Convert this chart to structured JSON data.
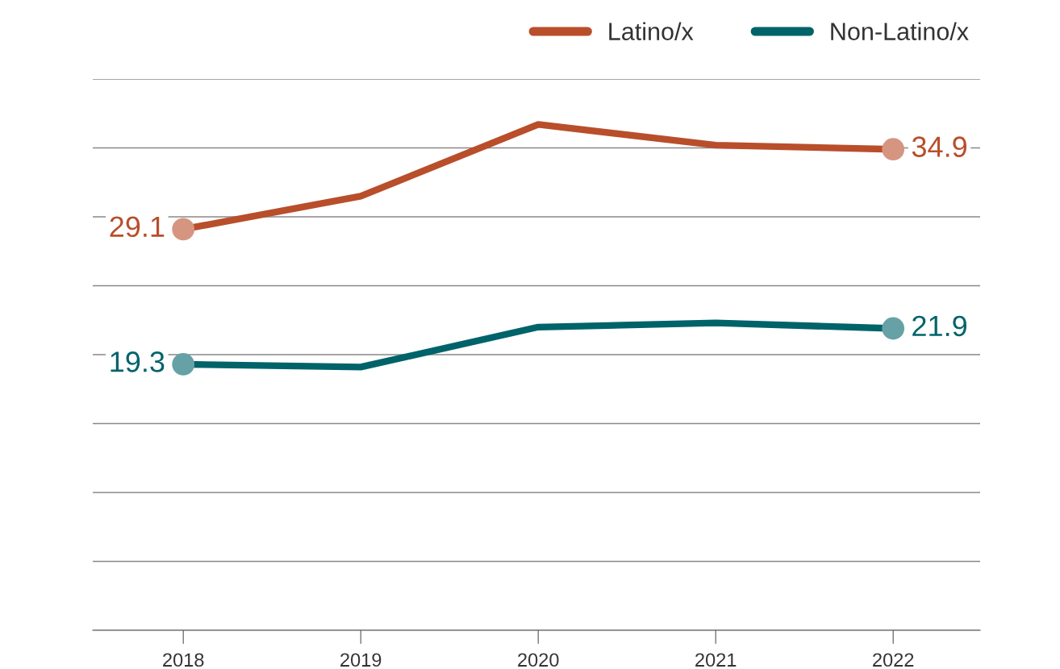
{
  "chart_data": {
    "type": "line",
    "categories": [
      "2018",
      "2019",
      "2020",
      "2021",
      "2022"
    ],
    "series": [
      {
        "name": "Latino/x",
        "color": "#b94e2b",
        "values": [
          29.1,
          31.5,
          36.7,
          35.2,
          34.9
        ],
        "value_labels": [
          "29.1",
          null,
          null,
          null,
          "34.9"
        ]
      },
      {
        "name": "Non-Latino/x",
        "color": "#00636a",
        "values": [
          19.3,
          19.1,
          22.0,
          22.3,
          21.9
        ],
        "value_labels": [
          "19.3",
          null,
          null,
          null,
          "21.9"
        ]
      }
    ],
    "ylim": [
      0,
      40
    ],
    "yticks": [
      {
        "value": 0,
        "label": null
      },
      {
        "value": 5,
        "label": null
      },
      {
        "value": 10,
        "label": null
      },
      {
        "value": 15,
        "label": null
      },
      {
        "value": 20,
        "label": null
      },
      {
        "value": 25,
        "label": null
      },
      {
        "value": 30,
        "label": null
      },
      {
        "value": 35,
        "label": null
      },
      {
        "value": 40,
        "label": null
      }
    ],
    "tick_labels": "x",
    "grid": "y",
    "legend": "top right",
    "line_style": "solid"
  }
}
